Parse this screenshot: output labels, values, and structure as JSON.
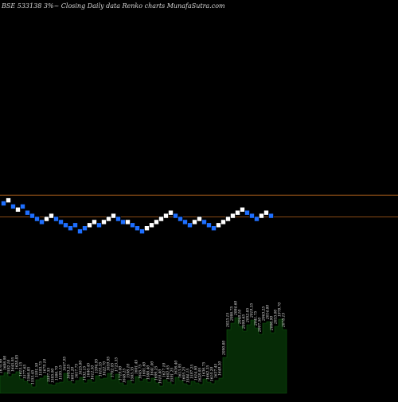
{
  "chart_data": {
    "type": "renko",
    "title": "BSE 533138  3%~  Closing Daily data  Renko  charts MunafaSutra.com",
    "colors": {
      "background": "#000000",
      "up_brick": "#ffffff",
      "down_brick": "#1e6fff",
      "reference_line": "#b5651d",
      "volume": "#062b06",
      "volume_edge": "#0f5a0f",
      "price_label": "#e0e0e0"
    },
    "reference_levels": [
      8.0,
      15.0
    ],
    "bricks": [
      {
        "dir": "down",
        "level": 10
      },
      {
        "dir": "up",
        "level": 9
      },
      {
        "dir": "down",
        "level": 11
      },
      {
        "dir": "up",
        "level": 12
      },
      {
        "dir": "down",
        "level": 11
      },
      {
        "dir": "down",
        "level": 13
      },
      {
        "dir": "down",
        "level": 14
      },
      {
        "dir": "down",
        "level": 15
      },
      {
        "dir": "down",
        "level": 16
      },
      {
        "dir": "up",
        "level": 15
      },
      {
        "dir": "up",
        "level": 14
      },
      {
        "dir": "down",
        "level": 15
      },
      {
        "dir": "down",
        "level": 16
      },
      {
        "dir": "down",
        "level": 17
      },
      {
        "dir": "down",
        "level": 18
      },
      {
        "dir": "down",
        "level": 17
      },
      {
        "dir": "down",
        "level": 19
      },
      {
        "dir": "down",
        "level": 18
      },
      {
        "dir": "up",
        "level": 17
      },
      {
        "dir": "up",
        "level": 16
      },
      {
        "dir": "down",
        "level": 17
      },
      {
        "dir": "up",
        "level": 16
      },
      {
        "dir": "up",
        "level": 15
      },
      {
        "dir": "up",
        "level": 14
      },
      {
        "dir": "down",
        "level": 15
      },
      {
        "dir": "down",
        "level": 16
      },
      {
        "dir": "up",
        "level": 16
      },
      {
        "dir": "down",
        "level": 17
      },
      {
        "dir": "down",
        "level": 18
      },
      {
        "dir": "down",
        "level": 19
      },
      {
        "dir": "up",
        "level": 18
      },
      {
        "dir": "up",
        "level": 17
      },
      {
        "dir": "up",
        "level": 16
      },
      {
        "dir": "up",
        "level": 15
      },
      {
        "dir": "up",
        "level": 14
      },
      {
        "dir": "up",
        "level": 13
      },
      {
        "dir": "down",
        "level": 14
      },
      {
        "dir": "down",
        "level": 15
      },
      {
        "dir": "down",
        "level": 16
      },
      {
        "dir": "down",
        "level": 17
      },
      {
        "dir": "up",
        "level": 16
      },
      {
        "dir": "up",
        "level": 15
      },
      {
        "dir": "down",
        "level": 16
      },
      {
        "dir": "down",
        "level": 17
      },
      {
        "dir": "down",
        "level": 18
      },
      {
        "dir": "up",
        "level": 17
      },
      {
        "dir": "up",
        "level": 16
      },
      {
        "dir": "up",
        "level": 15
      },
      {
        "dir": "up",
        "level": 14
      },
      {
        "dir": "up",
        "level": 13
      },
      {
        "dir": "up",
        "level": 12
      },
      {
        "dir": "down",
        "level": 13
      },
      {
        "dir": "down",
        "level": 14
      },
      {
        "dir": "down",
        "level": 15
      },
      {
        "dir": "up",
        "level": 14
      },
      {
        "dir": "up",
        "level": 13
      },
      {
        "dir": "down",
        "level": 14
      }
    ],
    "volume": [
      {
        "v": 22,
        "label": "1670.90"
      },
      {
        "v": 26,
        "label": "1686.90"
      },
      {
        "v": 21,
        "label": "1592.10"
      },
      {
        "v": 24,
        "label": "1645.95"
      },
      {
        "v": 27,
        "label": "1628.85"
      },
      {
        "v": 18,
        "label": "1615.15"
      },
      {
        "v": 15,
        "label": "1577.65"
      },
      {
        "v": 12,
        "label": "1566.85"
      },
      {
        "v": 8,
        "label": "1555.45"
      },
      {
        "v": 17,
        "label": "1591.50"
      },
      {
        "v": 19,
        "label": "1593.75"
      },
      {
        "v": 22,
        "label": "1679.10"
      },
      {
        "v": 11,
        "label": "1597.55"
      },
      {
        "v": 10,
        "label": "1585.00"
      },
      {
        "v": 13,
        "label": "1586.70"
      },
      {
        "v": 14,
        "label": "1595.15"
      },
      {
        "v": 25,
        "label": "1647.95"
      },
      {
        "v": 15,
        "label": "1603.25"
      },
      {
        "v": 12,
        "label": "1601.20"
      },
      {
        "v": 16,
        "label": "1617.75"
      },
      {
        "v": 20,
        "label": "1625.80"
      },
      {
        "v": 13,
        "label": "1632.15"
      },
      {
        "v": 17,
        "label": "1640.45"
      },
      {
        "v": 14,
        "label": "1612.50"
      },
      {
        "v": 22,
        "label": "1594.95"
      },
      {
        "v": 18,
        "label": "1610.35"
      },
      {
        "v": 19,
        "label": "1622.70"
      },
      {
        "v": 25,
        "label": "1659.95"
      },
      {
        "v": 17,
        "label": "1702.05"
      },
      {
        "v": 24,
        "label": "1723.35"
      },
      {
        "v": 13,
        "label": "1719.00"
      },
      {
        "v": 10,
        "label": "1648.25"
      },
      {
        "v": 16,
        "label": "1598.10"
      },
      {
        "v": 12,
        "label": "1585.35"
      },
      {
        "v": 21,
        "label": "1601.45"
      },
      {
        "v": 15,
        "label": "1645.75"
      },
      {
        "v": 18,
        "label": "1601.60"
      },
      {
        "v": 14,
        "label": "1588.40"
      },
      {
        "v": 19,
        "label": "1641.00"
      },
      {
        "v": 13,
        "label": "1699.25"
      },
      {
        "v": 9,
        "label": "1610.80"
      },
      {
        "v": 17,
        "label": "1627.10"
      },
      {
        "v": 14,
        "label": "1602.65"
      },
      {
        "v": 11,
        "label": "1591.25"
      },
      {
        "v": 20,
        "label": "1636.40"
      },
      {
        "v": 16,
        "label": "1613.95"
      },
      {
        "v": 12,
        "label": "1605.25"
      },
      {
        "v": 10,
        "label": "1584.15"
      },
      {
        "v": 15,
        "label": "1597.25"
      },
      {
        "v": 13,
        "label": "1614.90"
      },
      {
        "v": 11,
        "label": "1628.05"
      },
      {
        "v": 18,
        "label": "1636.75"
      },
      {
        "v": 14,
        "label": "1662.35"
      },
      {
        "v": 12,
        "label": "1619.20"
      },
      {
        "v": 16,
        "label": "1637.45"
      },
      {
        "v": 19,
        "label": "1649.30"
      },
      {
        "v": 45,
        "label": "2090.80"
      },
      {
        "v": 80,
        "label": "2023.15"
      },
      {
        "v": 88,
        "label": "2086.75"
      },
      {
        "v": 95,
        "label": "2084.60"
      },
      {
        "v": 84,
        "label": "2048.10"
      },
      {
        "v": 78,
        "label": "2090.65"
      },
      {
        "v": 86,
        "label": "2052.85"
      },
      {
        "v": 92,
        "label": "2019.35"
      },
      {
        "v": 82,
        "label": "2041.75"
      },
      {
        "v": 74,
        "label": "2007.50"
      },
      {
        "v": 88,
        "label": "2063.25"
      },
      {
        "v": 90,
        "label": "2014.80"
      },
      {
        "v": 76,
        "label": "2006.90"
      },
      {
        "v": 84,
        "label": "2033.00"
      },
      {
        "v": 93,
        "label": "1978.70"
      },
      {
        "v": 80,
        "label": "2078.15"
      }
    ],
    "xlabel": "",
    "ylabel": ""
  }
}
